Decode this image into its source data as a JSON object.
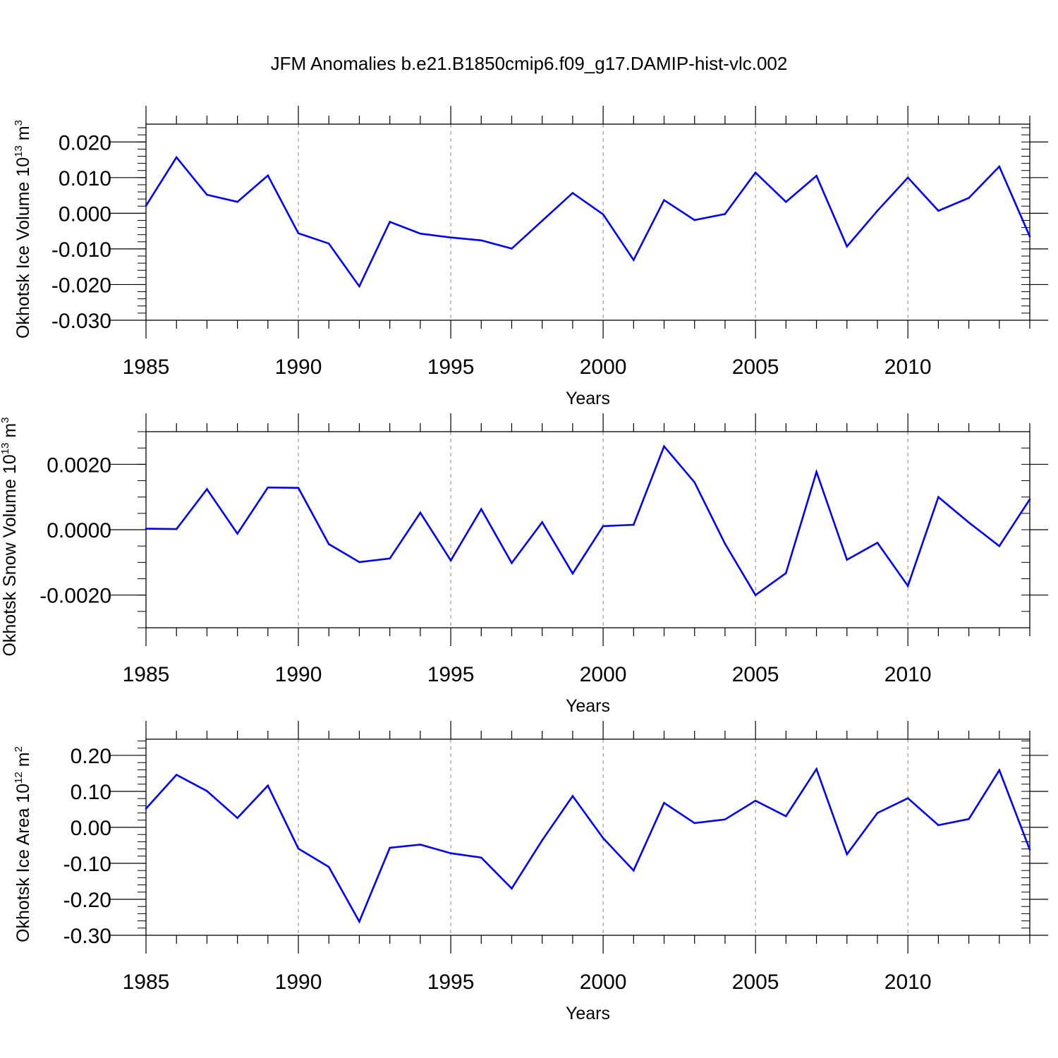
{
  "figure_title": "JFM Anomalies b.e21.B1850cmip6.f09_g17.DAMIP-hist-vlc.002",
  "line_color": "#0000ff",
  "chart_data": [
    {
      "type": "line",
      "name": "ice-volume",
      "ylabel": "Okhotsk Ice Volume 10",
      "ylabel_exp": "13",
      "ylabel_unit": " m",
      "ylabel_unit_exp": "3",
      "xlabel": "Years",
      "xlim": [
        1985,
        2014
      ],
      "ylim": [
        -0.03,
        0.025
      ],
      "x_ticks": [
        1985,
        1990,
        1995,
        2000,
        2005,
        2010
      ],
      "x_tick_labels": [
        "1985",
        "1990",
        "1995",
        "2000",
        "2005",
        "2010"
      ],
      "y_ticks": [
        -0.03,
        -0.02,
        -0.01,
        0.0,
        0.01,
        0.02
      ],
      "y_tick_labels": [
        "-0.030",
        "-0.020",
        "-0.010",
        "0.000",
        "0.010",
        "0.020"
      ],
      "y_minor_step": 0.002,
      "x": [
        1985,
        1986,
        1987,
        1988,
        1989,
        1990,
        1991,
        1992,
        1993,
        1994,
        1995,
        1996,
        1997,
        1998,
        1999,
        2000,
        2001,
        2002,
        2003,
        2004,
        2005,
        2006,
        2007,
        2008,
        2009,
        2010,
        2011,
        2012,
        2013,
        2014
      ],
      "values": [
        0.0021,
        0.0157,
        0.0052,
        0.0032,
        0.0106,
        -0.0056,
        -0.0085,
        -0.0205,
        -0.0024,
        -0.0057,
        -0.0068,
        -0.0076,
        -0.0099,
        -0.0021,
        0.0057,
        -0.0003,
        -0.0131,
        0.0037,
        -0.0019,
        -0.0002,
        0.0114,
        0.0032,
        0.0105,
        -0.0093,
        0.0007,
        0.01,
        0.0007,
        0.0043,
        0.0131,
        -0.0065
      ]
    },
    {
      "type": "line",
      "name": "snow-volume",
      "ylabel": "Okhotsk Snow Volume 10",
      "ylabel_exp": "13",
      "ylabel_unit": " m",
      "ylabel_unit_exp": "3",
      "xlabel": "Years",
      "xlim": [
        1985,
        2014
      ],
      "ylim": [
        -0.003,
        0.003
      ],
      "x_ticks": [
        1985,
        1990,
        1995,
        2000,
        2005,
        2010
      ],
      "x_tick_labels": [
        "1985",
        "1990",
        "1995",
        "2000",
        "2005",
        "2010"
      ],
      "y_ticks": [
        -0.002,
        0.0,
        0.002
      ],
      "y_tick_labels": [
        "-0.0020",
        "0.0000",
        "0.0020"
      ],
      "y_minor_step": 0.0005,
      "x": [
        1985,
        1986,
        1987,
        1988,
        1989,
        1990,
        1991,
        1992,
        1993,
        1994,
        1995,
        1996,
        1997,
        1998,
        1999,
        2000,
        2001,
        2002,
        2003,
        2004,
        2005,
        2006,
        2007,
        2008,
        2009,
        2010,
        2011,
        2012,
        2013,
        2014
      ],
      "values": [
        3e-05,
        2e-05,
        0.00124,
        -0.00012,
        0.00129,
        0.00128,
        -0.00044,
        -0.00099,
        -0.00088,
        0.00052,
        -0.00094,
        0.00063,
        -0.00102,
        0.00023,
        -0.00134,
        0.00011,
        0.00015,
        0.00255,
        0.00145,
        -0.00043,
        -0.002,
        -0.00133,
        0.00177,
        -0.00092,
        -0.0004,
        -0.00172,
        0.001,
        0.00022,
        -0.0005,
        0.00093
      ]
    },
    {
      "type": "line",
      "name": "ice-area",
      "ylabel": "Okhotsk Ice Area 10",
      "ylabel_exp": "12",
      "ylabel_unit": " m",
      "ylabel_unit_exp": "2",
      "xlabel": "Years",
      "xlim": [
        1985,
        2014
      ],
      "ylim": [
        -0.3,
        0.245
      ],
      "x_ticks": [
        1985,
        1990,
        1995,
        2000,
        2005,
        2010
      ],
      "x_tick_labels": [
        "1985",
        "1990",
        "1995",
        "2000",
        "2005",
        "2010"
      ],
      "y_ticks": [
        -0.3,
        -0.2,
        -0.1,
        0.0,
        0.1,
        0.2
      ],
      "y_tick_labels": [
        "-0.30",
        "-0.20",
        "-0.10",
        "0.00",
        "0.10",
        "0.20"
      ],
      "y_minor_step": 0.02,
      "x": [
        1985,
        1986,
        1987,
        1988,
        1989,
        1990,
        1991,
        1992,
        1993,
        1994,
        1995,
        1996,
        1997,
        1998,
        1999,
        2000,
        2001,
        2002,
        2003,
        2004,
        2005,
        2006,
        2007,
        2008,
        2009,
        2010,
        2011,
        2012,
        2013,
        2014
      ],
      "values": [
        0.052,
        0.146,
        0.101,
        0.026,
        0.116,
        -0.059,
        -0.11,
        -0.262,
        -0.057,
        -0.048,
        -0.072,
        -0.084,
        -0.17,
        -0.036,
        0.087,
        -0.03,
        -0.12,
        0.068,
        0.012,
        0.022,
        0.074,
        0.031,
        0.162,
        -0.075,
        0.04,
        0.081,
        0.006,
        0.023,
        0.159,
        -0.062
      ]
    }
  ]
}
